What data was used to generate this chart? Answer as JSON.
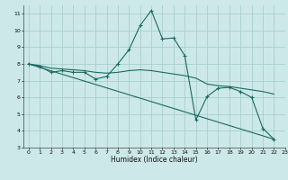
{
  "xlabel": "Humidex (Indice chaleur)",
  "background_color": "#cce8e8",
  "grid_color": "#aacece",
  "line_color": "#1a6b60",
  "xlim": [
    -0.5,
    23
  ],
  "ylim": [
    3,
    11.5
  ],
  "xticks": [
    0,
    1,
    2,
    3,
    4,
    5,
    6,
    7,
    8,
    9,
    10,
    11,
    12,
    13,
    14,
    15,
    16,
    17,
    18,
    19,
    20,
    21,
    22,
    23
  ],
  "yticks": [
    3,
    4,
    5,
    6,
    7,
    8,
    9,
    10,
    11
  ],
  "series": [
    {
      "x": [
        0,
        1,
        2,
        3,
        4,
        5,
        6,
        7,
        8,
        9,
        10,
        11,
        12,
        13,
        14,
        15,
        16,
        17,
        18,
        19,
        20,
        21,
        22
      ],
      "y": [
        8.0,
        7.85,
        7.5,
        7.6,
        7.5,
        7.5,
        7.1,
        7.25,
        8.0,
        8.85,
        10.3,
        11.2,
        9.5,
        9.55,
        8.5,
        4.65,
        6.05,
        6.55,
        6.6,
        6.35,
        6.0,
        4.15,
        3.5
      ]
    },
    {
      "x": [
        0,
        22
      ],
      "y": [
        8.0,
        3.5
      ]
    },
    {
      "x": [
        0,
        1,
        2,
        3,
        4,
        5,
        6,
        7,
        8,
        9,
        10,
        11,
        12,
        13,
        14,
        15,
        16,
        17,
        18,
        19,
        20,
        21,
        22
      ],
      "y": [
        8.0,
        7.9,
        7.75,
        7.7,
        7.65,
        7.6,
        7.5,
        7.45,
        7.5,
        7.6,
        7.65,
        7.6,
        7.5,
        7.4,
        7.3,
        7.15,
        6.8,
        6.7,
        6.65,
        6.55,
        6.45,
        6.35,
        6.2
      ]
    }
  ]
}
